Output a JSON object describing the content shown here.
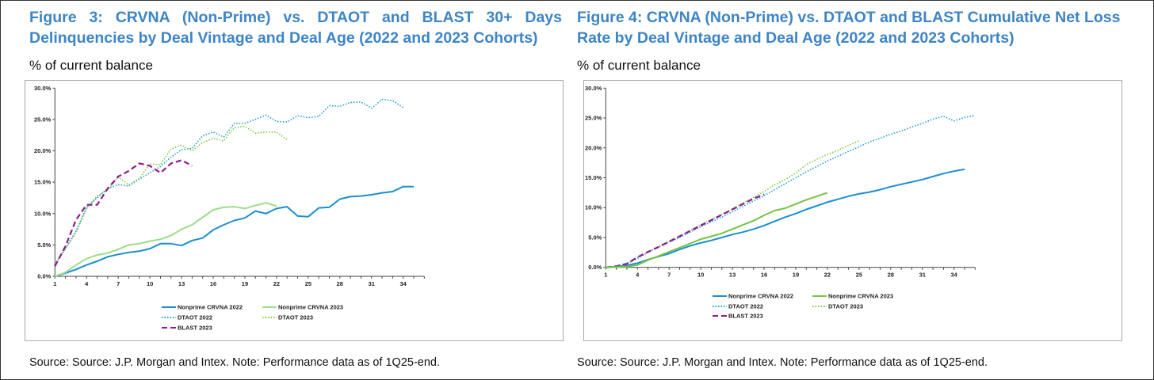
{
  "figures": [
    {
      "title": "Figure 3: CRVNA (Non-Prime) vs. DTAOT and BLAST 30+ Days Delinquencies by Deal Vintage and Deal Age (2022 and 2023 Cohorts)",
      "title_line1": "Figure 3: CRVNA (Non-Prime) vs. DTAOT and BLAST 30+ Days",
      "title_line2": "Delinquencies by Deal Vintage and Deal Age (2022 and 2023 Cohorts)",
      "subtitle": "% of current balance",
      "source": "Source: Source: J.P. Morgan and Intex. Note: Performance data as of 1Q25-end."
    },
    {
      "title": "Figure 4: CRVNA (Non-Prime) vs. DTAOT and BLAST Cumulative Net Loss Rate by Deal Vintage and Deal Age (2022 and 2023 Cohorts)",
      "title_line1": "Figure 4: CRVNA (Non-Prime) vs. DTAOT and BLAST Cumulative Net Loss",
      "title_line2": "Rate by Deal Vintage and Deal Age (2022 and 2023 Cohorts)",
      "subtitle": "% of current balance",
      "source": "Source: Source: J.P. Morgan and Intex. Note: Performance data as of 1Q25-end."
    }
  ],
  "chart_data": [
    {
      "type": "line",
      "title": "CRVNA vs DTAOT and BLAST 30+ Days Delinquencies",
      "ylabel": "% of current balance",
      "xlim": [
        1,
        36
      ],
      "ylim": [
        0,
        30
      ],
      "xticks": [
        "1",
        "4",
        "7",
        "10",
        "13",
        "16",
        "19",
        "22",
        "25",
        "28",
        "31",
        "34"
      ],
      "yticks": [
        "0.0%",
        "5.0%",
        "10.0%",
        "15.0%",
        "20.0%",
        "25.0%",
        "30.0%"
      ],
      "legend": "bottom",
      "series": [
        {
          "name": "Nonprime CRVNA 2022",
          "color": "#1a8fd0",
          "style": "solid",
          "values": [
            0,
            0.5,
            1.1,
            1.8,
            2.4,
            3.1,
            3.5,
            3.8,
            4.0,
            4.4,
            5.2,
            5.2,
            4.9,
            5.7,
            6.1,
            7.4,
            8.2,
            8.9,
            9.3,
            10.4,
            10.0,
            10.8,
            11.1,
            9.6,
            9.5,
            10.9,
            11.0,
            12.3,
            12.7,
            12.8,
            13.0,
            13.3,
            13.5,
            14.3,
            14.3
          ]
        },
        {
          "name": "Nonprime CRVNA 2023",
          "color": "#9ddc8a",
          "style": "solid",
          "values": [
            0,
            0.6,
            1.8,
            2.8,
            3.4,
            3.7,
            4.3,
            5.0,
            5.2,
            5.6,
            5.9,
            6.5,
            7.5,
            8.2,
            9.4,
            10.6,
            11.0,
            11.1,
            10.8,
            11.3,
            11.7,
            11.2
          ]
        },
        {
          "name": "DTAOT 2022",
          "color": "#1a9ee0",
          "style": "dotted",
          "values": [
            1.8,
            4.5,
            7.2,
            11.0,
            12.5,
            14.0,
            14.6,
            14.4,
            15.5,
            16.5,
            17.5,
            19.0,
            20.2,
            20.4,
            22.4,
            23.0,
            22.2,
            24.4,
            24.4,
            25.0,
            25.7,
            24.7,
            24.6,
            25.6,
            25.3,
            25.5,
            27.2,
            27.1,
            27.7,
            27.8,
            26.8,
            28.2,
            28.0,
            26.9
          ]
        },
        {
          "name": "DTAOT 2023",
          "color": "#7cc83c",
          "style": "dotted",
          "values": [
            2.0,
            4.3,
            7.0,
            10.8,
            12.8,
            13.8,
            15.8,
            14.6,
            15.6,
            17.9,
            17.8,
            20.3,
            20.9,
            20.0,
            21.3,
            22.0,
            21.6,
            23.7,
            23.9,
            22.8,
            23.0,
            23.0,
            21.8
          ]
        },
        {
          "name": "BLAST 2023",
          "color": "#8e1a8e",
          "style": "dashed",
          "values": [
            1.6,
            4.8,
            9.0,
            11.4,
            11.4,
            14.0,
            15.9,
            16.8,
            18.0,
            17.6,
            16.5,
            18.0,
            18.5,
            17.6
          ]
        }
      ]
    },
    {
      "type": "line",
      "title": "CRVNA vs DTAOT and BLAST Cumulative Net Loss Rate",
      "ylabel": "% of current balance",
      "xlim": [
        1,
        37
      ],
      "ylim": [
        0,
        30
      ],
      "xticks": [
        "1",
        "4",
        "7",
        "10",
        "13",
        "16",
        "19",
        "22",
        "25",
        "28",
        "31",
        "34"
      ],
      "yticks": [
        "0.0%",
        "5.0%",
        "10.0%",
        "15.0%",
        "20.0%",
        "25.0%",
        "30.0%"
      ],
      "legend": "bottom",
      "series": [
        {
          "name": "Nonprime CRVNA 2022",
          "color": "#1a8fd0",
          "style": "solid",
          "values": [
            0,
            0.1,
            0.3,
            0.7,
            1.3,
            1.8,
            2.3,
            3.0,
            3.6,
            4.1,
            4.5,
            5.0,
            5.5,
            5.9,
            6.4,
            7.0,
            7.7,
            8.4,
            9.0,
            9.7,
            10.3,
            10.9,
            11.4,
            11.9,
            12.3,
            12.6,
            13.0,
            13.5,
            13.9,
            14.3,
            14.7,
            15.2,
            15.7,
            16.1,
            16.4
          ]
        },
        {
          "name": "Nonprime CRVNA 2023",
          "color": "#76c442",
          "style": "solid",
          "values": [
            0,
            0.05,
            0.1,
            0.4,
            1.2,
            1.9,
            2.6,
            3.3,
            4.0,
            4.7,
            5.2,
            5.7,
            6.4,
            7.1,
            7.8,
            8.7,
            9.5,
            9.9,
            10.6,
            11.3,
            11.9,
            12.5
          ]
        },
        {
          "name": "DTAOT 2022",
          "color": "#1a9ee0",
          "style": "dotted",
          "values": [
            0,
            0.2,
            0.6,
            1.5,
            2.5,
            3.4,
            4.2,
            5.0,
            5.9,
            6.8,
            7.6,
            8.4,
            9.3,
            10.2,
            11.1,
            12.0,
            13.0,
            14.0,
            15.0,
            16.0,
            16.9,
            17.8,
            18.6,
            19.4,
            20.2,
            21.0,
            21.6,
            22.3,
            22.8,
            23.5,
            24.1,
            24.8,
            25.3,
            24.5,
            25.1,
            25.4
          ]
        },
        {
          "name": "DTAOT 2023",
          "color": "#7cc83c",
          "style": "dotted",
          "values": [
            0,
            0.2,
            0.7,
            1.7,
            2.6,
            3.5,
            4.4,
            5.2,
            6.2,
            7.1,
            8.0,
            8.9,
            9.8,
            10.8,
            11.7,
            12.7,
            13.8,
            14.7,
            15.8,
            17.2,
            18.1,
            18.9,
            19.6,
            20.4,
            21.2
          ]
        },
        {
          "name": "BLAST 2023",
          "color": "#8e1a8e",
          "style": "dashed",
          "values": [
            0,
            0.2,
            0.6,
            1.7,
            2.6,
            3.4,
            4.3,
            5.2,
            6.1,
            7.0,
            7.9,
            8.8,
            9.7,
            10.6,
            11.5,
            12.2
          ]
        }
      ]
    }
  ]
}
